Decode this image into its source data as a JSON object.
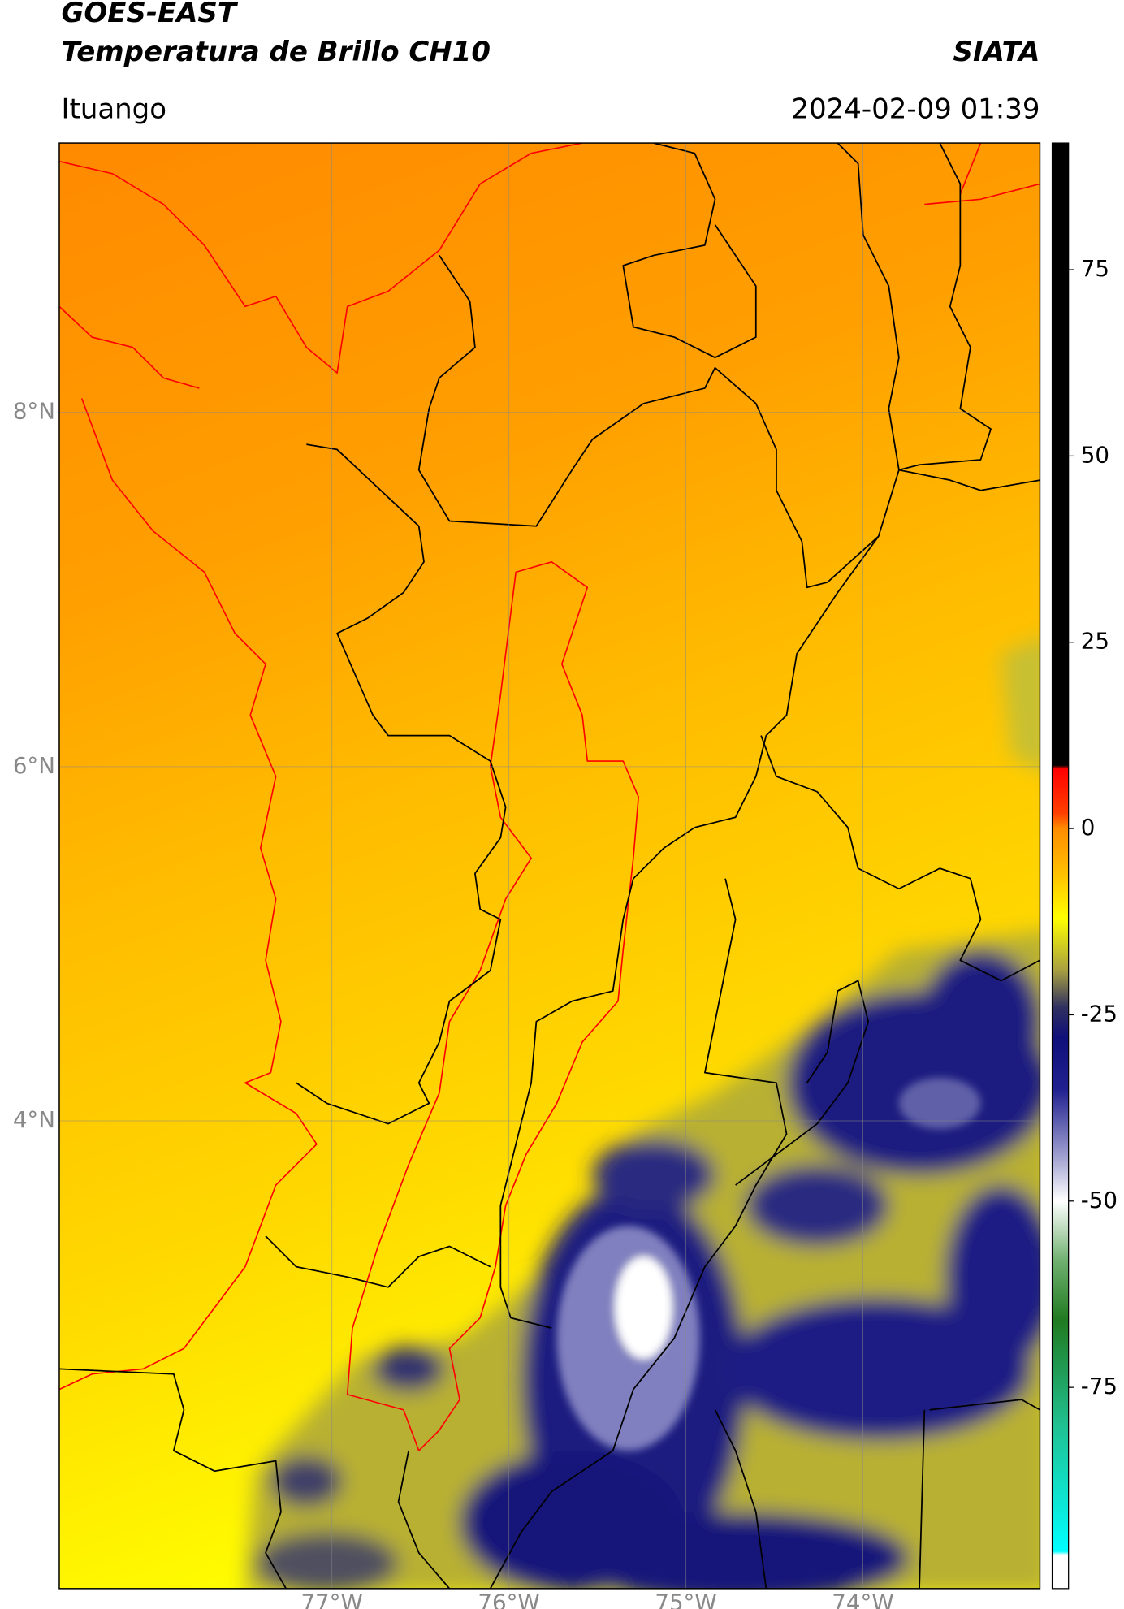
{
  "header": {
    "title": "GOES-EAST",
    "subtitle": "Temperatura de Brillo CH10",
    "source": "SIATA",
    "location": "Ituango",
    "datetime": "2024-02-09 01:39"
  },
  "map": {
    "xlim": [
      -78.54,
      -73.0
    ],
    "ylim": [
      1.36,
      9.52
    ],
    "xticks": [
      {
        "value": -77,
        "label": "77°W"
      },
      {
        "value": -76,
        "label": "76°W"
      },
      {
        "value": -75,
        "label": "75°W"
      },
      {
        "value": -74,
        "label": "74°W"
      }
    ],
    "yticks": [
      {
        "value": 8,
        "label": "8°N"
      },
      {
        "value": 6,
        "label": "6°N"
      },
      {
        "value": 4,
        "label": "4°N"
      }
    ],
    "grid": true
  },
  "colorbar": {
    "lim": [
      -102,
      92
    ],
    "ticks": [
      75,
      50,
      25,
      0,
      -25,
      -50,
      -75
    ],
    "stops": [
      {
        "value": 92,
        "color": "#000000"
      },
      {
        "value": 8.5,
        "color": "#000000"
      },
      {
        "value": 8,
        "color": "#ff0000"
      },
      {
        "value": 2,
        "color": "#ff4000"
      },
      {
        "value": 0,
        "color": "#ff8c00"
      },
      {
        "value": -6,
        "color": "#ffc000"
      },
      {
        "value": -12,
        "color": "#ffff00"
      },
      {
        "value": -19,
        "color": "#a8a040"
      },
      {
        "value": -24,
        "color": "#303060"
      },
      {
        "value": -28,
        "color": "#10107a"
      },
      {
        "value": -35,
        "color": "#202090"
      },
      {
        "value": -44,
        "color": "#a0a0d0"
      },
      {
        "value": -50,
        "color": "#ffffff"
      },
      {
        "value": -58,
        "color": "#70b070"
      },
      {
        "value": -66,
        "color": "#207a20"
      },
      {
        "value": -80,
        "color": "#20c090"
      },
      {
        "value": -97,
        "color": "#00ffff"
      },
      {
        "value": -97.5,
        "color": "#ffffff"
      },
      {
        "value": -102,
        "color": "#ffffff"
      }
    ]
  }
}
